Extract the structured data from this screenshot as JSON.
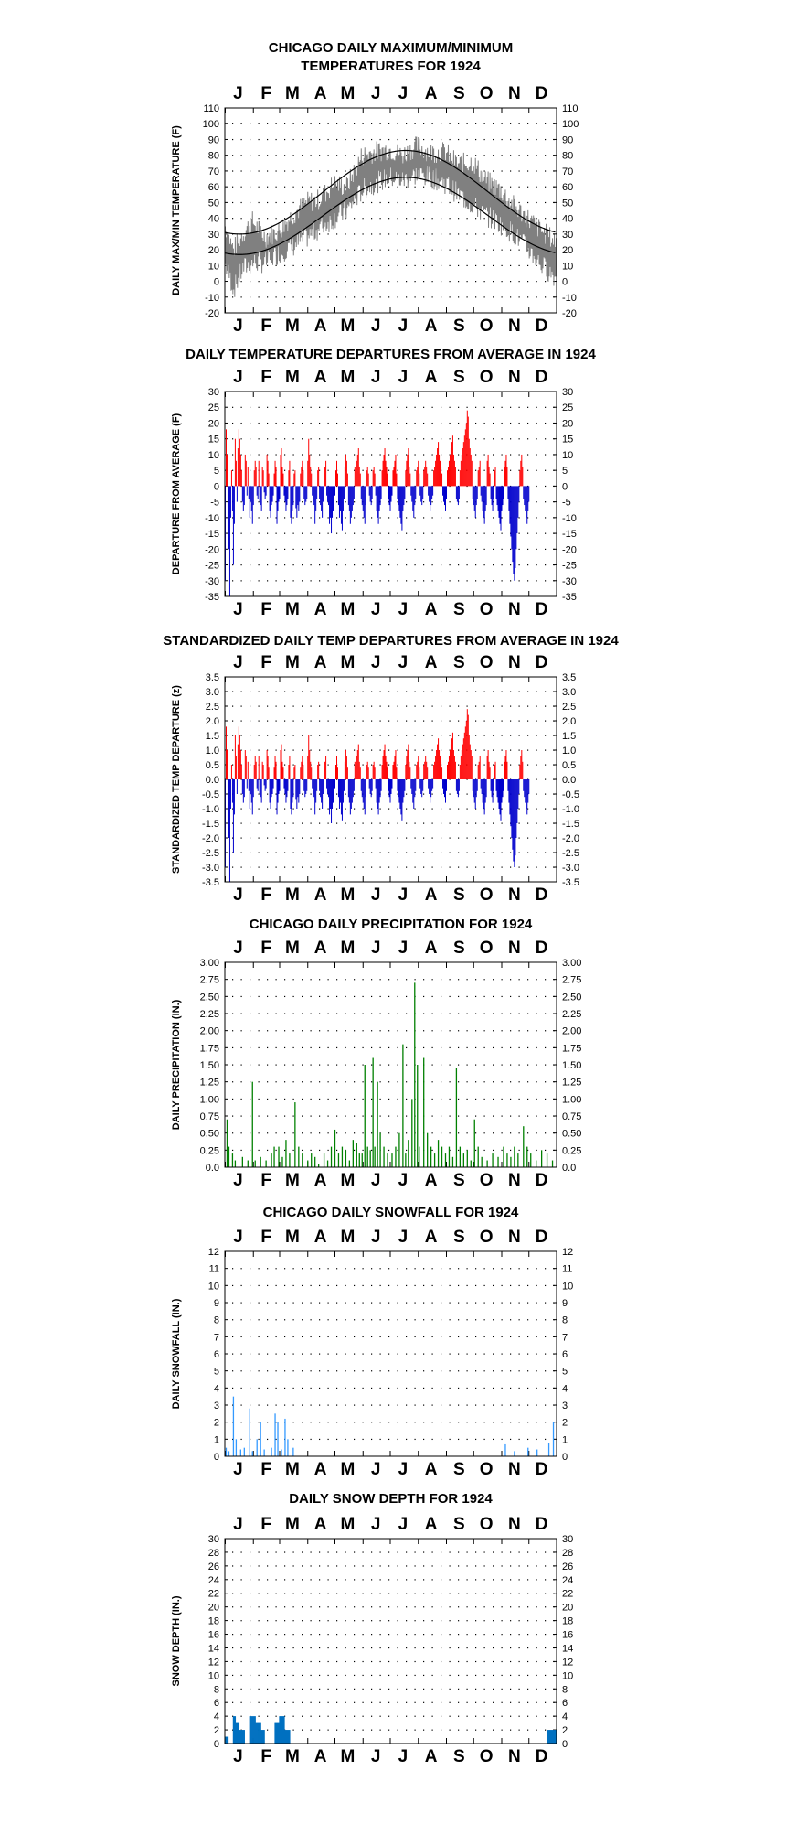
{
  "months": [
    "J",
    "F",
    "M",
    "A",
    "M",
    "J",
    "J",
    "A",
    "S",
    "O",
    "N",
    "D"
  ],
  "colors": {
    "frame": "#000000",
    "gridDots": "#000000",
    "maxmin_obs": "#808080",
    "maxmin_norm": "#000000",
    "warm": "#ff0000",
    "cold": "#0000cc",
    "precip": "#008000",
    "snowfall": "#3399ff",
    "snowdepth": "#0070c0"
  },
  "chart_data": [
    {
      "id": "maxmin",
      "type": "line",
      "title": [
        "CHICAGO DAILY MAXIMUM/MINIMUM",
        "TEMPERATURES FOR 1924"
      ],
      "ylabel": "DAILY MAX/MIN TEMPERATURE (F)",
      "ylim": [
        -20,
        110
      ],
      "yticks": [
        "-20",
        "-10",
        "0",
        "10",
        "20",
        "30",
        "40",
        "50",
        "60",
        "70",
        "80",
        "90",
        "100",
        "110"
      ],
      "grid": true,
      "normals": {
        "max_winter": 30,
        "max_summer": 83,
        "min_winter": 17,
        "min_summer": 66
      },
      "series": [
        {
          "color": "#808080",
          "x_day": [
            1,
            10,
            20,
            31,
            45,
            60,
            75,
            91,
            105,
            121,
            135,
            152,
            165,
            182,
            196,
            213,
            227,
            244,
            258,
            274,
            288,
            305,
            319,
            335,
            350,
            366
          ],
          "max": [
            35,
            20,
            30,
            38,
            28,
            32,
            42,
            50,
            52,
            62,
            60,
            80,
            82,
            84,
            80,
            86,
            82,
            82,
            74,
            76,
            64,
            58,
            48,
            40,
            32,
            25
          ],
          "min": [
            10,
            -5,
            8,
            12,
            12,
            18,
            22,
            28,
            34,
            40,
            45,
            58,
            62,
            66,
            64,
            68,
            66,
            62,
            55,
            48,
            42,
            36,
            30,
            20,
            10,
            2
          ]
        }
      ]
    },
    {
      "id": "departures",
      "type": "bar",
      "title": "DAILY TEMPERATURE DEPARTURES FROM AVERAGE IN 1924",
      "ylabel": "DEPARTURE FROM AVERAGE (F)",
      "ylim": [
        -35,
        30
      ],
      "yticks": [
        "-35",
        "-30",
        "-25",
        "-20",
        "-15",
        "-10",
        "-5",
        "0",
        "5",
        "10",
        "15",
        "20",
        "25",
        "30"
      ],
      "grid": true,
      "values": [
        -30,
        18,
        10,
        -15,
        -20,
        -35,
        -10,
        5,
        -8,
        -25,
        -12,
        15,
        8,
        -5,
        12,
        18,
        15,
        10,
        5,
        -5,
        -8,
        -6,
        10,
        8,
        -3,
        6,
        -4,
        -10,
        -5,
        -8,
        -12,
        -6,
        5,
        8,
        6,
        -3,
        -4,
        8,
        -5,
        -6,
        -8,
        6,
        5,
        -2,
        -4,
        -3,
        10,
        8,
        4,
        -8,
        -10,
        -6,
        -5,
        -3,
        4,
        8,
        6,
        -12,
        -8,
        -5,
        -4,
        10,
        12,
        6,
        4,
        -3,
        -5,
        -8,
        -6,
        -4,
        5,
        8,
        -10,
        -12,
        -8,
        -6,
        4,
        5,
        -7,
        -10,
        -6,
        -8,
        -5,
        4,
        6,
        8,
        5,
        -4,
        -6,
        -5,
        -4,
        8,
        15,
        10,
        6,
        4,
        -3,
        -5,
        -6,
        -12,
        -8,
        -4,
        5,
        6,
        -4,
        -6,
        -8,
        -10,
        -5,
        4,
        6,
        8,
        -3,
        -5,
        -6,
        -12,
        -10,
        -15,
        -10,
        -8,
        -5,
        -3,
        5,
        8,
        4,
        -6,
        -10,
        -8,
        -12,
        -14,
        -8,
        -4,
        6,
        10,
        8,
        4,
        -6,
        -8,
        -12,
        -10,
        -8,
        -6,
        -4,
        6,
        5,
        8,
        10,
        12,
        6,
        4,
        -4,
        -6,
        -8,
        -10,
        -12,
        -6,
        5,
        6,
        4,
        -3,
        -5,
        -6,
        -4,
        5,
        6,
        4,
        -3,
        -8,
        -10,
        -12,
        -8,
        -6,
        -4,
        5,
        8,
        10,
        12,
        8,
        6,
        4,
        -4,
        -6,
        -8,
        -5,
        -3,
        5,
        6,
        8,
        10,
        4,
        -4,
        -6,
        -8,
        -10,
        -12,
        -14,
        -8,
        -6,
        -4,
        5,
        8,
        10,
        12,
        6,
        4,
        -3,
        -5,
        -8,
        -10,
        -6,
        -4,
        5,
        6,
        8,
        4,
        -3,
        -5,
        -6,
        -4,
        5,
        6,
        8,
        6,
        4,
        -3,
        -5,
        -8,
        -6,
        -4,
        -3,
        5,
        6,
        8,
        10,
        12,
        14,
        10,
        8,
        6,
        4,
        -3,
        -5,
        -6,
        -8,
        -4,
        5,
        6,
        8,
        10,
        12,
        14,
        16,
        10,
        8,
        6,
        -4,
        -5,
        -6,
        -4,
        5,
        8,
        10,
        12,
        14,
        16,
        18,
        20,
        24,
        22,
        15,
        12,
        10,
        8,
        -4,
        -6,
        -8,
        -10,
        -6,
        -4,
        5,
        6,
        8,
        -3,
        -5,
        -8,
        -10,
        -12,
        -8,
        -6,
        8,
        10,
        6,
        4,
        -4,
        -6,
        -8,
        -4,
        5,
        6,
        -4,
        -6,
        -8,
        -10,
        -12,
        -14,
        -8,
        -6,
        -4,
        6,
        8,
        10,
        6,
        -4,
        -8,
        -12,
        -16,
        -20,
        -24,
        -28,
        -30,
        -26,
        -20,
        -15,
        -10,
        -5,
        5,
        8,
        10,
        6,
        -4,
        -6,
        -8,
        -10,
        -12,
        -8,
        -5
      ]
    },
    {
      "id": "standardized",
      "type": "bar",
      "title": "STANDARDIZED DAILY TEMP DEPARTURES FROM AVERAGE IN 1924",
      "ylabel": "STANDARDIZED TEMP DEPARTURE (z)",
      "ylim": [
        -3.5,
        3.5
      ],
      "yticks": [
        "-3.5",
        "-3.0",
        "-2.5",
        "-2.0",
        "-1.5",
        "-1.0",
        "-0.5",
        "0.0",
        "0.5",
        "1.0",
        "1.5",
        "2.0",
        "2.5",
        "3.0",
        "3.5"
      ],
      "grid": true,
      "scale_from": "departures",
      "values_note_scale": 0.1
    },
    {
      "id": "precip",
      "type": "bar",
      "title": "CHICAGO DAILY PRECIPITATION FOR 1924",
      "ylabel": "DAILY PRECIPITATION (IN.)",
      "ylim": [
        0,
        3.0
      ],
      "yticks": [
        "0.0",
        "0.25",
        "0.50",
        "0.75",
        "1.00",
        "1.25",
        "1.50",
        "1.75",
        "2.00",
        "2.25",
        "2.50",
        "2.75",
        "3.00"
      ],
      "grid": true,
      "events": [
        [
          3,
          0.7
        ],
        [
          5,
          0.3
        ],
        [
          9,
          0.2
        ],
        [
          12,
          0.1
        ],
        [
          20,
          0.15
        ],
        [
          26,
          0.1
        ],
        [
          31,
          1.25
        ],
        [
          34,
          0.1
        ],
        [
          40,
          0.15
        ],
        [
          46,
          0.1
        ],
        [
          52,
          0.2
        ],
        [
          55,
          0.3
        ],
        [
          60,
          0.3
        ],
        [
          64,
          0.15
        ],
        [
          68,
          0.4
        ],
        [
          72,
          0.2
        ],
        [
          78,
          0.95
        ],
        [
          82,
          0.3
        ],
        [
          86,
          0.2
        ],
        [
          92,
          0.1
        ],
        [
          96,
          0.2
        ],
        [
          100,
          0.15
        ],
        [
          104,
          0.05
        ],
        [
          110,
          0.2
        ],
        [
          114,
          0.1
        ],
        [
          118,
          0.3
        ],
        [
          122,
          0.55
        ],
        [
          126,
          0.2
        ],
        [
          130,
          0.3
        ],
        [
          134,
          0.25
        ],
        [
          138,
          0.1
        ],
        [
          142,
          0.4
        ],
        [
          146,
          0.35
        ],
        [
          149,
          0.2
        ],
        [
          152,
          0.2
        ],
        [
          155,
          1.5
        ],
        [
          158,
          0.3
        ],
        [
          161,
          0.25
        ],
        [
          164,
          1.6
        ],
        [
          166,
          0.3
        ],
        [
          169,
          1.25
        ],
        [
          172,
          0.5
        ],
        [
          176,
          0.3
        ],
        [
          180,
          0.2
        ],
        [
          185,
          0.2
        ],
        [
          189,
          0.3
        ],
        [
          193,
          0.5
        ],
        [
          197,
          1.8
        ],
        [
          200,
          0.2
        ],
        [
          203,
          0.4
        ],
        [
          207,
          1.0
        ],
        [
          210,
          2.7
        ],
        [
          213,
          1.5
        ],
        [
          215,
          0.3
        ],
        [
          220,
          1.6
        ],
        [
          224,
          0.5
        ],
        [
          228,
          0.3
        ],
        [
          232,
          0.2
        ],
        [
          236,
          0.4
        ],
        [
          240,
          0.3
        ],
        [
          244,
          0.2
        ],
        [
          248,
          0.3
        ],
        [
          252,
          0.15
        ],
        [
          256,
          1.45
        ],
        [
          260,
          0.3
        ],
        [
          264,
          0.2
        ],
        [
          268,
          0.25
        ],
        [
          272,
          0.1
        ],
        [
          276,
          0.7
        ],
        [
          280,
          0.3
        ],
        [
          284,
          0.15
        ],
        [
          290,
          0.1
        ],
        [
          296,
          0.2
        ],
        [
          302,
          0.15
        ],
        [
          308,
          0.3
        ],
        [
          312,
          0.2
        ],
        [
          316,
          0.15
        ],
        [
          320,
          0.3
        ],
        [
          324,
          0.2
        ],
        [
          330,
          0.6
        ],
        [
          334,
          0.3
        ],
        [
          338,
          0.2
        ],
        [
          344,
          0.1
        ],
        [
          350,
          0.25
        ],
        [
          356,
          0.2
        ],
        [
          362,
          0.1
        ]
      ]
    },
    {
      "id": "snowfall",
      "type": "bar",
      "title": "CHICAGO DAILY SNOWFALL FOR 1924",
      "ylabel": "DAILY SNOWFALL (IN.)",
      "ylim": [
        0,
        12
      ],
      "yticks": [
        "0",
        "1",
        "2",
        "3",
        "4",
        "5",
        "6",
        "7",
        "8",
        "9",
        "10",
        "11",
        "12"
      ],
      "grid": true,
      "events": [
        [
          2,
          0.5
        ],
        [
          5,
          0.3
        ],
        [
          10,
          3.5
        ],
        [
          13,
          1.0
        ],
        [
          18,
          0.4
        ],
        [
          22,
          0.5
        ],
        [
          28,
          2.8
        ],
        [
          31,
          0.3
        ],
        [
          36,
          1.0
        ],
        [
          40,
          2.0
        ],
        [
          44,
          0.4
        ],
        [
          52,
          0.5
        ],
        [
          56,
          2.5
        ],
        [
          59,
          2.0
        ],
        [
          63,
          0.4
        ],
        [
          67,
          2.2
        ],
        [
          70,
          1.0
        ],
        [
          76,
          0.5
        ],
        [
          310,
          0.7
        ],
        [
          320,
          0.3
        ],
        [
          335,
          0.5
        ],
        [
          345,
          0.4
        ],
        [
          358,
          0.8
        ],
        [
          363,
          2.0
        ]
      ]
    },
    {
      "id": "snowdepth",
      "type": "bar",
      "title": "DAILY SNOW DEPTH FOR 1924",
      "ylabel": "SNOW DEPTH (IN.)",
      "ylim": [
        0,
        30
      ],
      "yticks": [
        "0",
        "2",
        "4",
        "6",
        "8",
        "10",
        "12",
        "14",
        "16",
        "18",
        "20",
        "22",
        "24",
        "26",
        "28",
        "30"
      ],
      "grid": true,
      "runs": [
        [
          1,
          4,
          1
        ],
        [
          10,
          12,
          4
        ],
        [
          13,
          16,
          3
        ],
        [
          17,
          22,
          2
        ],
        [
          28,
          34,
          4
        ],
        [
          35,
          40,
          3
        ],
        [
          41,
          44,
          2
        ],
        [
          56,
          60,
          3
        ],
        [
          61,
          66,
          4
        ],
        [
          67,
          72,
          2
        ],
        [
          357,
          366,
          2
        ]
      ]
    }
  ]
}
